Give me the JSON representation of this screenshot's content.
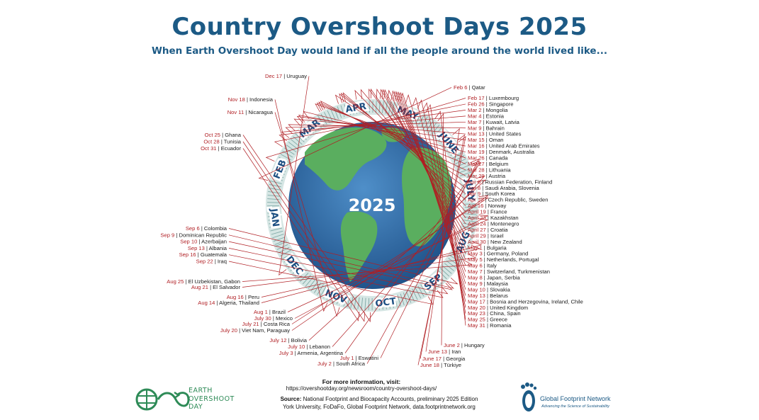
{
  "title": "Country Overshoot Days 2025",
  "subtitle": "When Earth Overshoot Day would land if all the people around the world lived like...",
  "chart_data": {
    "type": "radial-calendar",
    "center_label": "2025",
    "months": [
      "JAN",
      "FEB",
      "MAR",
      "APR",
      "MAY",
      "JUNE",
      "JULY",
      "AUG",
      "SEP",
      "OCT",
      "NOV",
      "DEC"
    ],
    "entries": [
      {
        "date": "Feb 6",
        "country": "Qatar",
        "doy": 37
      },
      {
        "date": "Feb 17",
        "country": "Luxembourg",
        "doy": 48
      },
      {
        "date": "Feb 26",
        "country": "Singapore",
        "doy": 57
      },
      {
        "date": "Mar 2",
        "country": "Mongolia",
        "doy": 61
      },
      {
        "date": "Mar 4",
        "country": "Estonia",
        "doy": 63
      },
      {
        "date": "Mar 7",
        "country": "Kuwait, Latvia",
        "doy": 66
      },
      {
        "date": "Mar 9",
        "country": "Bahrain",
        "doy": 68
      },
      {
        "date": "Mar 13",
        "country": "United States",
        "doy": 72
      },
      {
        "date": "Mar 15",
        "country": "Oman",
        "doy": 74
      },
      {
        "date": "Mar 16",
        "country": "United Arab Emirates",
        "doy": 75
      },
      {
        "date": "Mar 19",
        "country": "Denmark, Australia",
        "doy": 78
      },
      {
        "date": "Mar 26",
        "country": "Canada",
        "doy": 85
      },
      {
        "date": "Mar 27",
        "country": "Belgium",
        "doy": 86
      },
      {
        "date": "Mar 28",
        "country": "Lithuania",
        "doy": 87
      },
      {
        "date": "Mar 29",
        "country": "Austria",
        "doy": 88
      },
      {
        "date": "Apr 6",
        "country": "Russian Federation, Finland",
        "doy": 96
      },
      {
        "date": "Apr 8",
        "country": "Saudi Arabia, Slovenia",
        "doy": 98
      },
      {
        "date": "Apr 9",
        "country": "South Korea",
        "doy": 99
      },
      {
        "date": "Apr 10",
        "country": "Czech Republic, Sweden",
        "doy": 100
      },
      {
        "date": "Apr 16",
        "country": "Norway",
        "doy": 106
      },
      {
        "date": "April 19",
        "country": "France",
        "doy": 109
      },
      {
        "date": "April 23",
        "country": "Kazakhstan",
        "doy": 113
      },
      {
        "date": "April 24",
        "country": "Montenegro",
        "doy": 114
      },
      {
        "date": "April 27",
        "country": "Croatia",
        "doy": 117
      },
      {
        "date": "April 29",
        "country": "Israel",
        "doy": 119
      },
      {
        "date": "April 30",
        "country": "New Zealand",
        "doy": 120
      },
      {
        "date": "May 1",
        "country": "Bulgaria",
        "doy": 121
      },
      {
        "date": "May 3",
        "country": "Germany, Poland",
        "doy": 123
      },
      {
        "date": "May 5",
        "country": "Netherlands, Portugal",
        "doy": 125
      },
      {
        "date": "May 6",
        "country": "Italy",
        "doy": 126
      },
      {
        "date": "May 7",
        "country": "Switzerland, Turkmenistan",
        "doy": 127
      },
      {
        "date": "May 8",
        "country": "Japan, Serbia",
        "doy": 128
      },
      {
        "date": "May 9",
        "country": "Malaysia",
        "doy": 129
      },
      {
        "date": "May 10",
        "country": "Slovakia",
        "doy": 130
      },
      {
        "date": "May 13",
        "country": "Belarus",
        "doy": 133
      },
      {
        "date": "May 17",
        "country": "Bosnia and Herzegovina, Ireland, Chile",
        "doy": 137
      },
      {
        "date": "May 20",
        "country": "United Kingdom",
        "doy": 140
      },
      {
        "date": "May 23",
        "country": "China, Spain",
        "doy": 143
      },
      {
        "date": "May 25",
        "country": "Greece",
        "doy": 145
      },
      {
        "date": "May 31",
        "country": "Romania",
        "doy": 151
      },
      {
        "date": "June 2",
        "country": "Hungary",
        "doy": 153
      },
      {
        "date": "June 13",
        "country": "Iran",
        "doy": 164
      },
      {
        "date": "June 17",
        "country": "Georgia",
        "doy": 168
      },
      {
        "date": "June 18",
        "country": "Türkiye",
        "doy": 169
      },
      {
        "date": "July 1",
        "country": "Eswatini",
        "doy": 182
      },
      {
        "date": "July 2",
        "country": "South Africa",
        "doy": 183
      },
      {
        "date": "July 3",
        "country": "Armenia, Argentina",
        "doy": 184
      },
      {
        "date": "July 10",
        "country": "Lebanon",
        "doy": 191
      },
      {
        "date": "July 12",
        "country": "Bolivia",
        "doy": 193
      },
      {
        "date": "July 20",
        "country": "Viet Nam, Paraguay",
        "doy": 201
      },
      {
        "date": "July 21",
        "country": "Costa Rica",
        "doy": 202
      },
      {
        "date": "July 30",
        "country": "Mexico",
        "doy": 211
      },
      {
        "date": "Aug 1",
        "country": "Brazil",
        "doy": 213
      },
      {
        "date": "Aug 14",
        "country": "Algeria, Thailand",
        "doy": 226
      },
      {
        "date": "Aug 16",
        "country": "Peru",
        "doy": 228
      },
      {
        "date": "Aug 21",
        "country": "El Salvador",
        "doy": 233
      },
      {
        "date": "Aug 25",
        "country": "El Uzbekistan, Gabon",
        "doy": 237
      },
      {
        "date": "Sep 6",
        "country": "Colombia",
        "doy": 249
      },
      {
        "date": "Sep 9",
        "country": "Dominican Republic",
        "doy": 252
      },
      {
        "date": "Sep 10",
        "country": "Azerbaijan",
        "doy": 253
      },
      {
        "date": "Sep 13",
        "country": "Albania",
        "doy": 256
      },
      {
        "date": "Sep 16",
        "country": "Guatemala",
        "doy": 259
      },
      {
        "date": "Sep 22",
        "country": "Iraq",
        "doy": 265
      },
      {
        "date": "Oct 25",
        "country": "Ghana",
        "doy": 298
      },
      {
        "date": "Oct 28",
        "country": "Tunisia",
        "doy": 301
      },
      {
        "date": "Oct 31",
        "country": "Ecuador",
        "doy": 304
      },
      {
        "date": "Nov 11",
        "country": "Nicaragua",
        "doy": 315
      },
      {
        "date": "Nov 18",
        "country": "Indonesia",
        "doy": 322
      },
      {
        "date": "Dec 17",
        "country": "Uruguay",
        "doy": 351
      }
    ]
  },
  "footer": {
    "info_heading": "For more information, visit:",
    "info_url": "https://overshootday.org/newsroom/country-overshoot-days/",
    "source_label": "Source:",
    "source_line1": "National Footprint and Biocapacity Accounts, preliminary 2025 Edition",
    "source_line2": "York University, FoDaFo, Global Footprint Network, data.footprintnetwork.org"
  },
  "logos": {
    "eod_line1": "EARTH",
    "eod_line2": "OVERSHOOT",
    "eod_line3": "DAY",
    "gfn_name": "Global Footprint Network",
    "gfn_tagline": "Advancing the Science of Sustainability"
  },
  "colors": {
    "title": "#1c5a85",
    "date": "#b01e23",
    "ocean": "#2d6aa8",
    "land": "#5aae5f",
    "ring": "#a9c9c9",
    "month_text": "#1c4f82",
    "leader": "#b01e23"
  }
}
